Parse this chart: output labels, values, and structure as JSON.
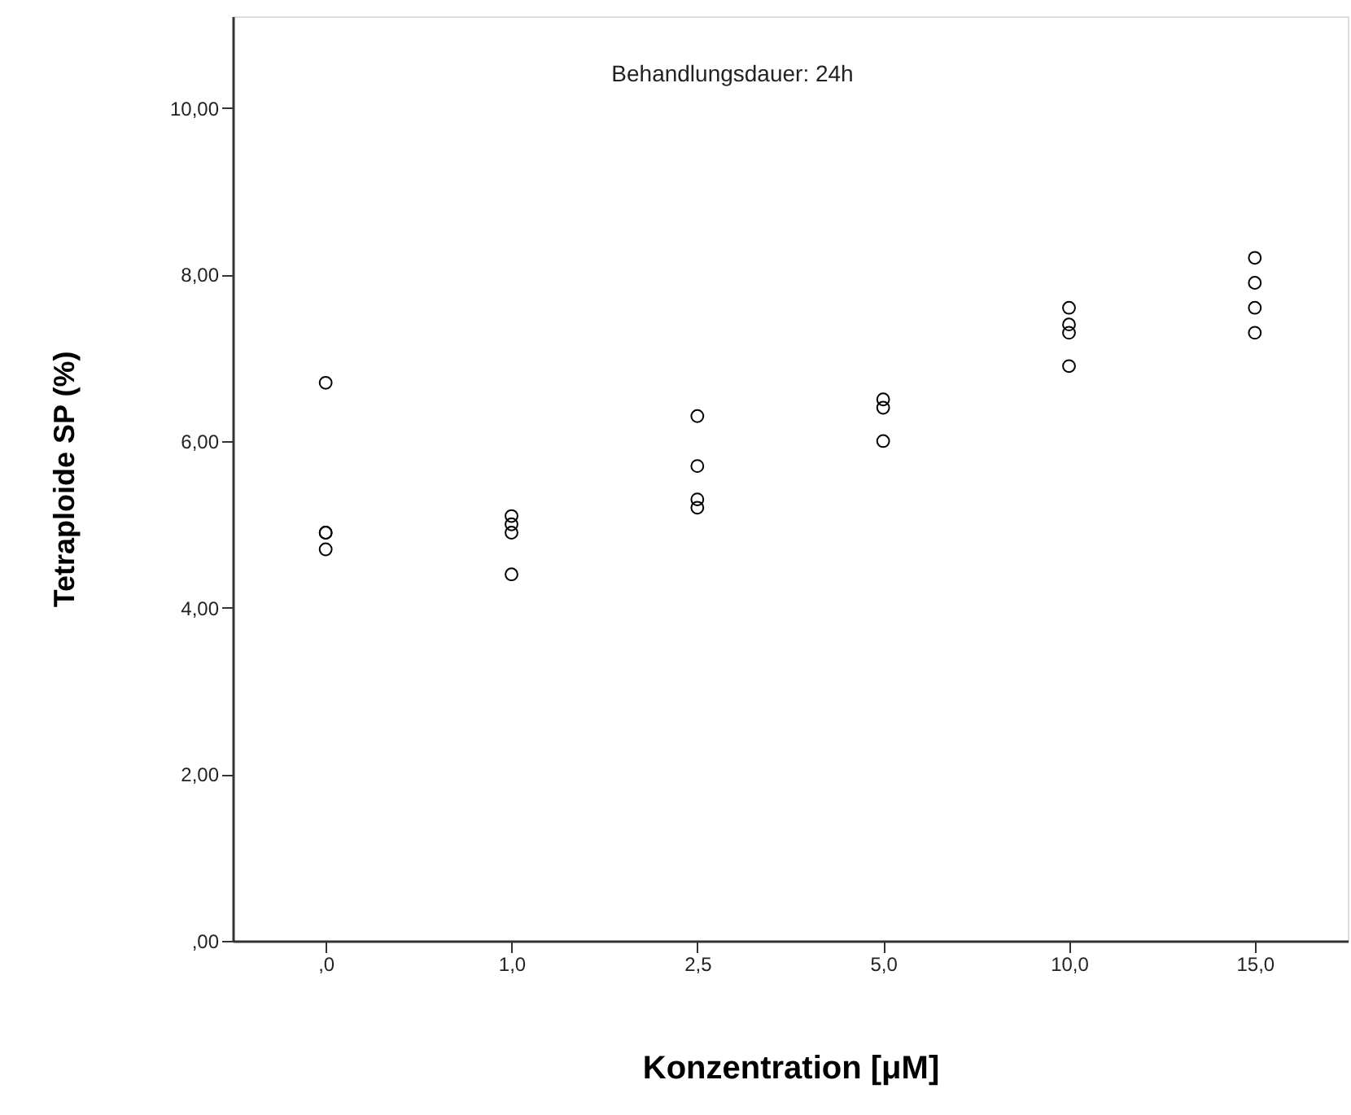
{
  "chart_data": {
    "type": "scatter",
    "xlabel": "Konzentration [μM]",
    "ylabel": "Tetraploide SP (%)",
    "annotations": [
      "Behandlungsdauer: 24h"
    ],
    "categories": [
      ",0",
      "1,0",
      "2,5",
      "5,0",
      "10,0",
      "15,0"
    ],
    "series": [
      {
        "color": "#000000",
        "x": [
          ",0",
          ",0",
          ",0",
          ",0",
          "1,0",
          "1,0",
          "1,0",
          "1,0",
          "2,5",
          "2,5",
          "2,5",
          "2,5",
          "5,0",
          "5,0",
          "5,0",
          "10,0",
          "10,0",
          "10,0",
          "10,0",
          "15,0",
          "15,0",
          "15,0",
          "15,0"
        ],
        "values": [
          6.7,
          4.9,
          4.9,
          4.7,
          5.1,
          5.0,
          4.9,
          4.4,
          6.3,
          5.7,
          5.3,
          5.2,
          6.5,
          6.4,
          6.0,
          7.6,
          7.4,
          7.3,
          6.9,
          8.2,
          7.9,
          7.6,
          7.3
        ]
      }
    ],
    "ylim": [
      0,
      11.1
    ],
    "yticks": [
      {
        "value": 0,
        "label": ",00"
      },
      {
        "value": 2,
        "label": "2,00"
      },
      {
        "value": 4,
        "label": "4,00"
      },
      {
        "value": 6,
        "label": "6,00"
      },
      {
        "value": 8,
        "label": "8,00"
      },
      {
        "value": 10,
        "label": "10,00"
      }
    ],
    "grid": false,
    "legend": false,
    "marker": "circle"
  }
}
